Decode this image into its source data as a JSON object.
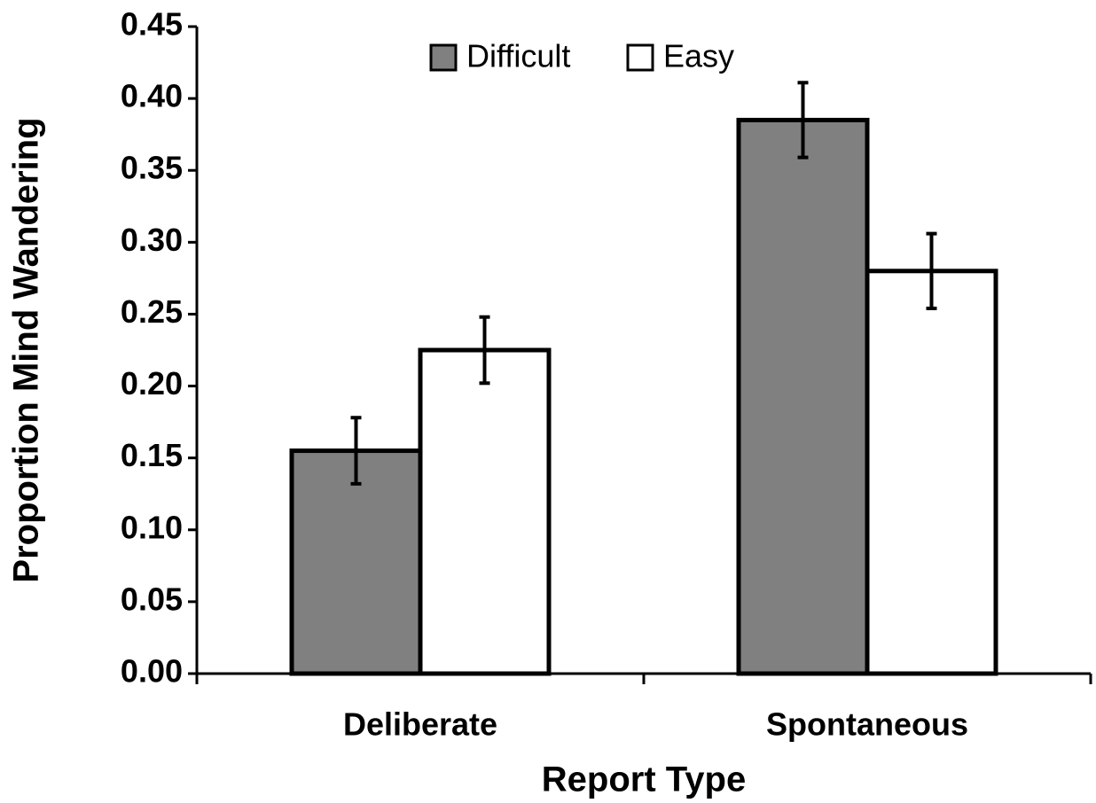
{
  "chart_data": {
    "type": "bar",
    "x_label": "Report Type",
    "y_label": "Proportion Mind Wandering",
    "categories": [
      "Deliberate",
      "Spontaneous"
    ],
    "series": [
      {
        "name": "Difficult",
        "color": "#808080",
        "values": [
          0.155,
          0.385
        ],
        "errors": [
          0.023,
          0.026
        ]
      },
      {
        "name": "Easy",
        "color": "#ffffff",
        "values": [
          0.225,
          0.28
        ],
        "errors": [
          0.023,
          0.026
        ]
      }
    ],
    "ylim": [
      0,
      0.45
    ],
    "yticks": [
      {
        "value": 0,
        "label": "0.00"
      },
      {
        "value": 0.05,
        "label": "0.05"
      },
      {
        "value": 0.1,
        "label": "0.10"
      },
      {
        "value": 0.15,
        "label": "0.15"
      },
      {
        "value": 0.2,
        "label": "0.20"
      },
      {
        "value": 0.25,
        "label": "0.25"
      },
      {
        "value": 0.3,
        "label": "0.30"
      },
      {
        "value": 0.35,
        "label": "0.35"
      },
      {
        "value": 0.4,
        "label": "0.40"
      },
      {
        "value": 0.45,
        "label": "0.45"
      }
    ],
    "grid": false,
    "legend": "top"
  }
}
